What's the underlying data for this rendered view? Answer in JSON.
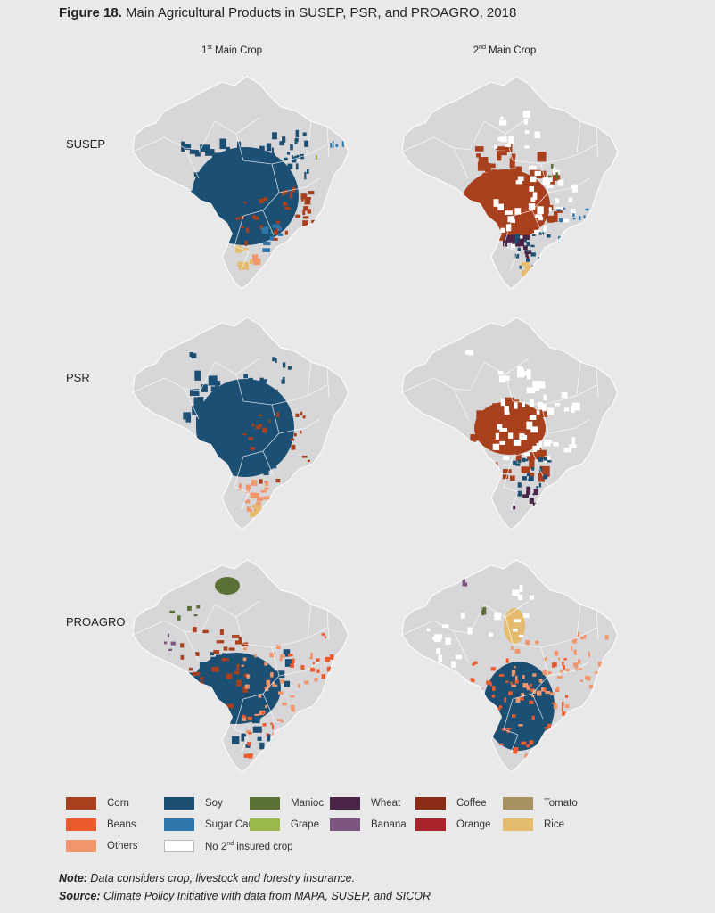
{
  "figure": {
    "number": "Figure 18.",
    "title": "Main Agricultural Products in SUSEP, PSR, and PROAGRO, 2018"
  },
  "columns": [
    {
      "ordinal": "1",
      "sup": "st",
      "label": "Main Crop"
    },
    {
      "ordinal": "2",
      "sup": "nd",
      "label": "Main Crop"
    }
  ],
  "rows": [
    "SUSEP",
    "PSR",
    "PROAGRO"
  ],
  "colors": {
    "background": "#e9e9e9",
    "country_fill": "#d7d7d9",
    "country_stroke": "#ffffff"
  },
  "legend": [
    {
      "label": "Corn",
      "color": "#a8401e"
    },
    {
      "label": "Soy",
      "color": "#1c4f74"
    },
    {
      "label": "Manioc",
      "color": "#5a7037"
    },
    {
      "label": "Wheat",
      "color": "#4b2548"
    },
    {
      "label": "Coffee",
      "color": "#8a2c16"
    },
    {
      "label": "Tomato",
      "color": "#a89262"
    },
    {
      "label": "Beans",
      "color": "#ec5a2e"
    },
    {
      "label": "Sugar Cane",
      "color": "#2e78ad"
    },
    {
      "label": "Grape",
      "color": "#9ab84c"
    },
    {
      "label": "Banana",
      "color": "#7d5581"
    },
    {
      "label": "Orange",
      "color": "#a8232a"
    },
    {
      "label": "Rice",
      "color": "#e5bb6e"
    },
    {
      "label": "Others",
      "color": "#f1956c"
    },
    {
      "label": "No 2",
      "sup": "nd",
      "label_rest": " insured crop",
      "color": "#ffffff"
    }
  ],
  "note": {
    "lead": "Note:",
    "text": " Data considers crop, livestock and forestry insurance."
  },
  "source": {
    "lead": "Source:",
    "text": " Climate Policy Initiative with data from MAPA, SUSEP, and SICOR"
  }
}
